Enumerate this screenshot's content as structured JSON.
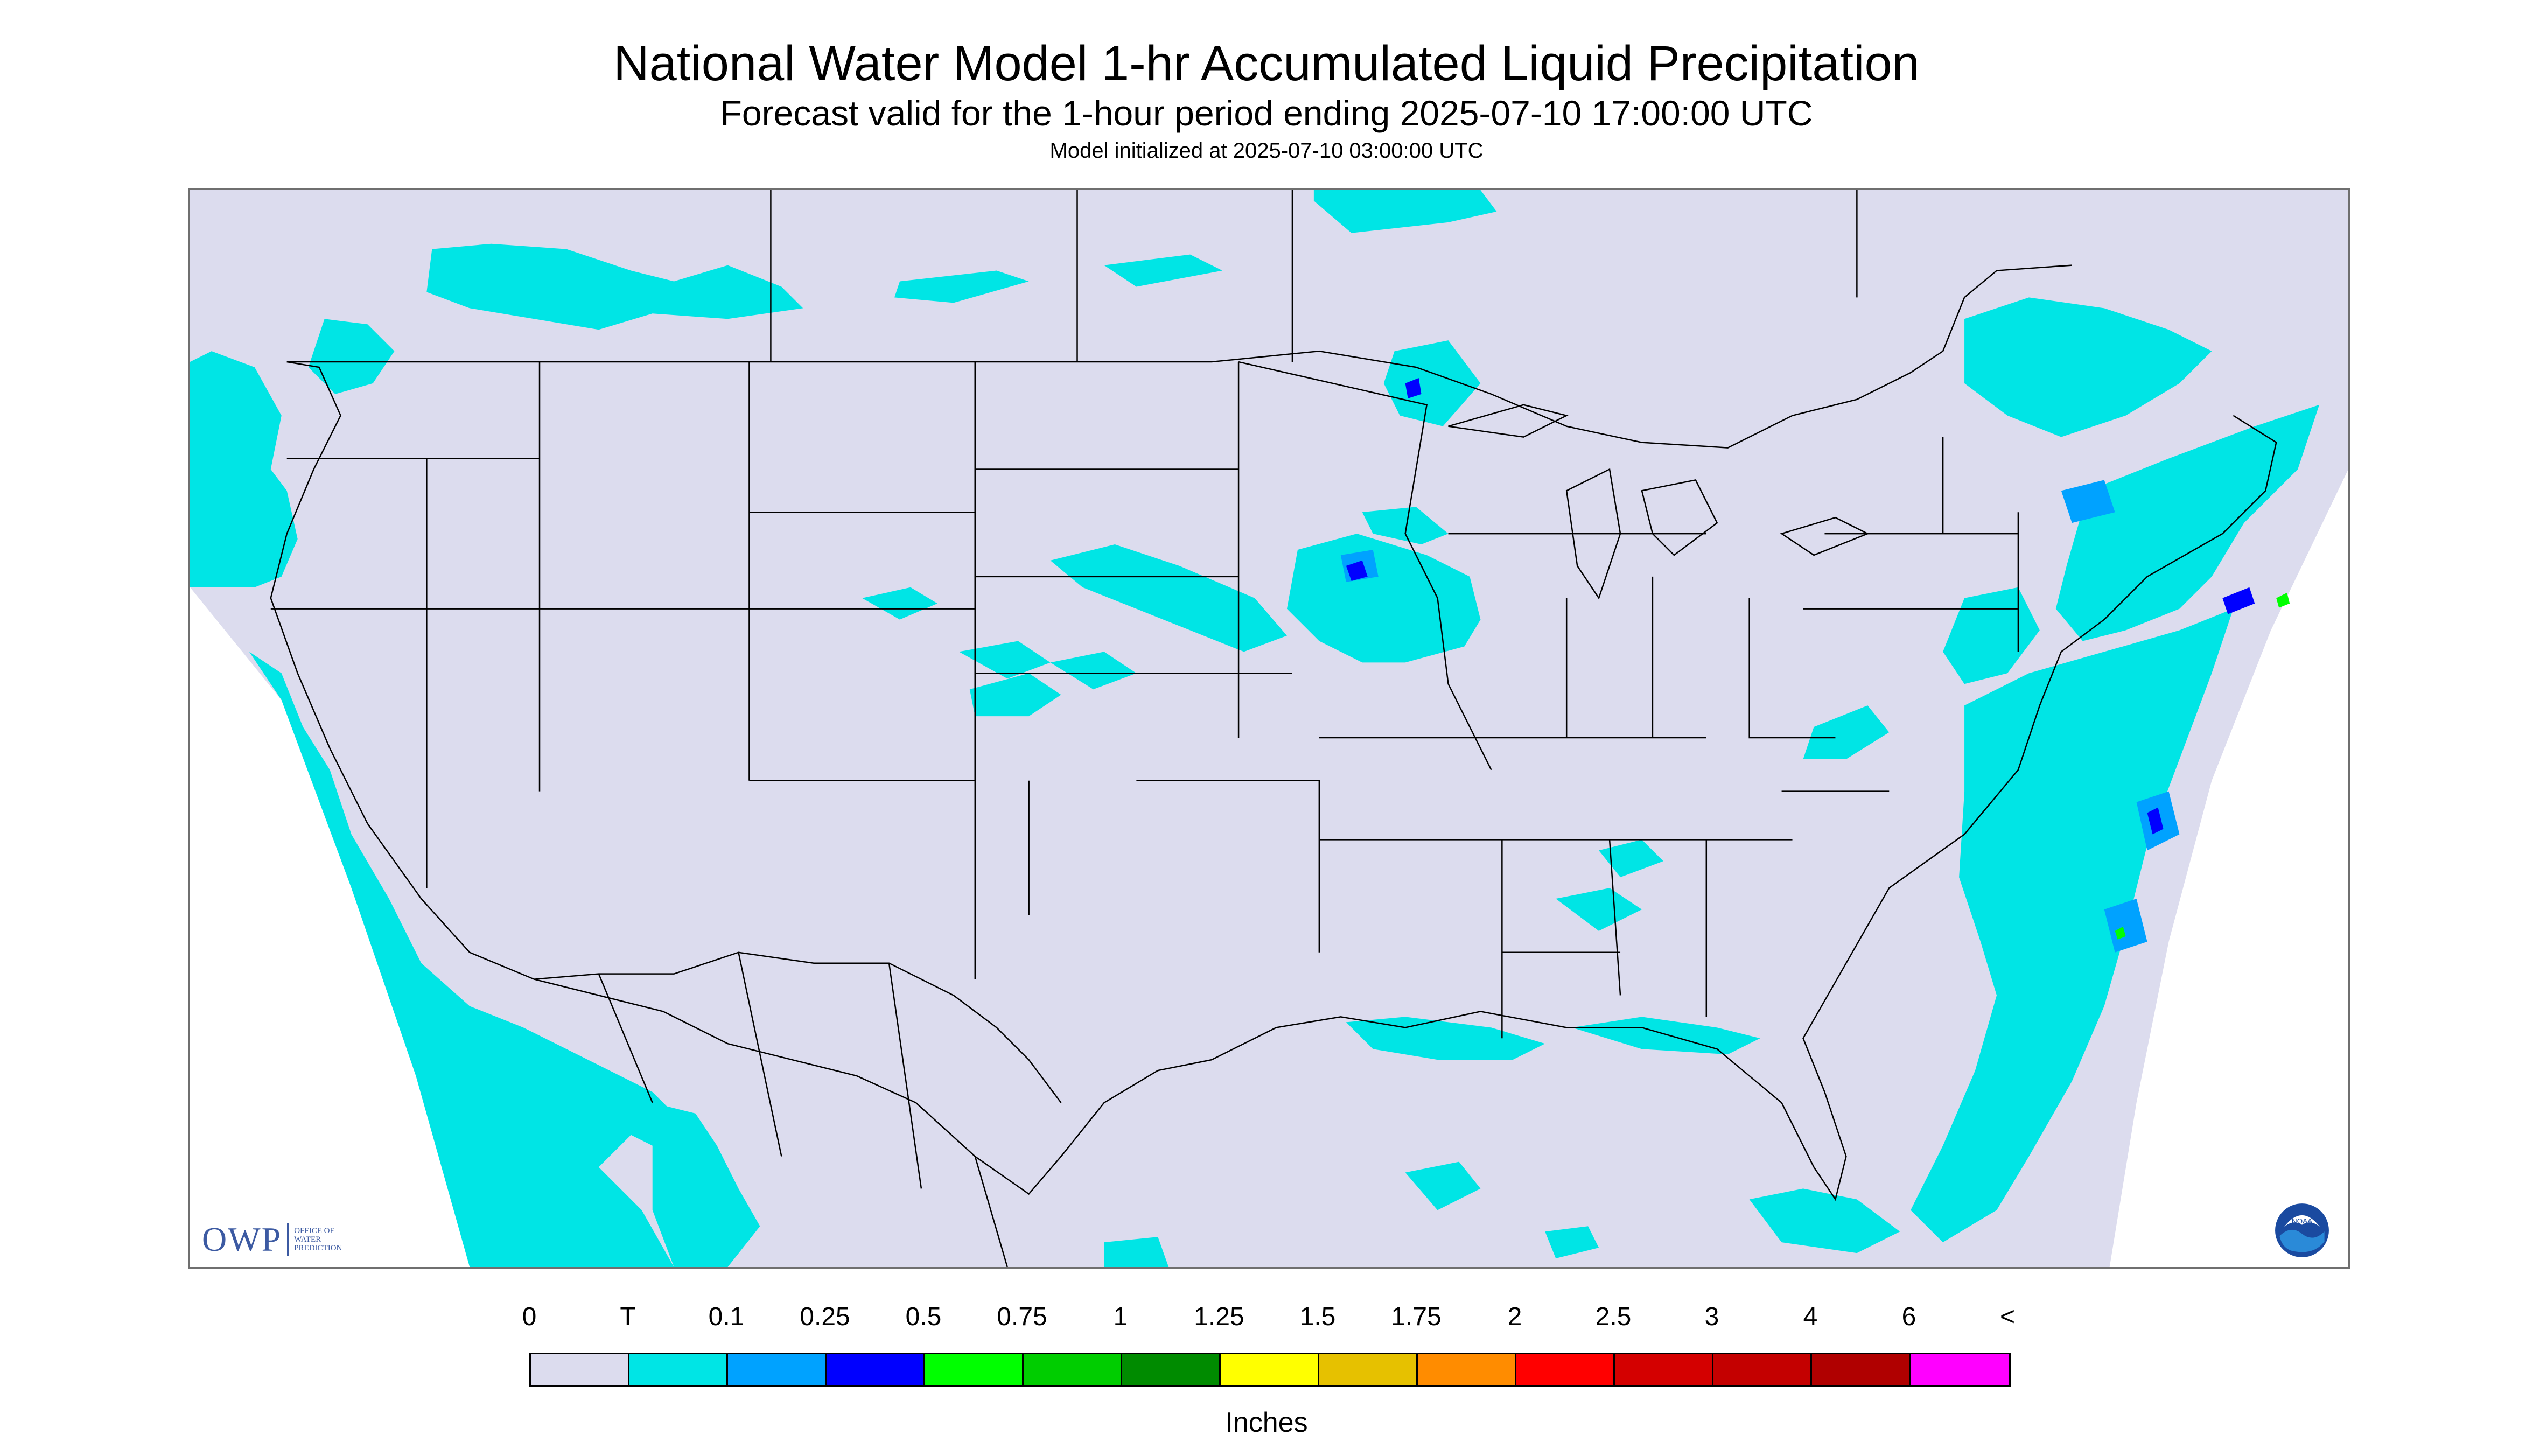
{
  "header": {
    "title": "National Water Model 1-hr Accumulated Liquid Precipitation",
    "subtitle": "Forecast valid for the 1-hour period ending 2025-07-10 17:00:00 UTC",
    "init": "Model initialized at 2025-07-10 03:00:00 UTC"
  },
  "logos": {
    "owp_mark": "OWP",
    "owp_text": [
      "OFFICE OF",
      "WATER",
      "PREDICTION"
    ],
    "noaa_text": "NOAA"
  },
  "colors": {
    "background_domain": "#dcdcee",
    "trace": "#00e5e5",
    "light_blue": "#00a2ff",
    "blue": "#0000ff",
    "green": "#00ff00",
    "outside": "#ffffff",
    "boundaries": "#000000"
  },
  "legend": {
    "labels": [
      "0",
      "T",
      "0.1",
      "0.25",
      "0.5",
      "0.75",
      "1",
      "1.25",
      "1.5",
      "1.75",
      "2",
      "2.5",
      "3",
      "4",
      "6",
      "<"
    ],
    "colors": [
      "#dcdcee",
      "#00e5e5",
      "#00a2ff",
      "#0000ff",
      "#00ff00",
      "#00cd00",
      "#008b00",
      "#ffff00",
      "#e6c100",
      "#ff8c00",
      "#ff0000",
      "#d40000",
      "#c40000",
      "#b00000",
      "#ff00ff",
      "#9955cc"
    ],
    "unit": "Inches"
  }
}
